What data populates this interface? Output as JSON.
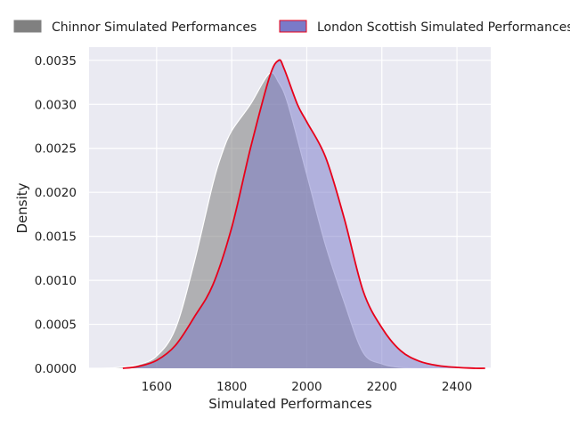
{
  "chart_data": {
    "type": "area",
    "xlabel": "Simulated Performances",
    "ylabel": "Density",
    "xlim": [
      1420,
      2490
    ],
    "ylim": [
      0,
      0.00365
    ],
    "xticks": [
      1600,
      1800,
      2000,
      2200,
      2400
    ],
    "yticks": [
      0.0,
      0.0005,
      0.001,
      0.0015,
      0.002,
      0.0025,
      0.003,
      0.0035
    ],
    "ytick_labels": [
      "0.0000",
      "0.0005",
      "0.0010",
      "0.0015",
      "0.0020",
      "0.0025",
      "0.0030",
      "0.0035"
    ],
    "grid": true,
    "legend_position": "top",
    "series": [
      {
        "name": "Chinnor Simulated Performances",
        "fill": "#808080",
        "fill_opacity": 0.55,
        "stroke": "#ffffff",
        "x": [
          1455,
          1500,
          1550,
          1600,
          1650,
          1700,
          1750,
          1775,
          1800,
          1850,
          1900,
          1925,
          1950,
          2000,
          2050,
          2100,
          2150,
          2200,
          2250,
          2300,
          2350
        ],
        "y": [
          0.0,
          1e-05,
          4e-05,
          0.00014,
          0.00045,
          0.0012,
          0.0021,
          0.00245,
          0.0027,
          0.003,
          0.00335,
          0.00325,
          0.003,
          0.0022,
          0.0014,
          0.00075,
          0.00018,
          5e-05,
          1e-05,
          0.0,
          0.0
        ]
      },
      {
        "name": "London Scottish Simulated Performances",
        "fill": "#7777c8",
        "fill_opacity": 0.5,
        "stroke": "#e8001a",
        "x": [
          1510,
          1550,
          1600,
          1650,
          1700,
          1750,
          1800,
          1850,
          1900,
          1925,
          1940,
          1975,
          2000,
          2050,
          2100,
          2150,
          2200,
          2250,
          2300,
          2350,
          2400,
          2450,
          2475
        ],
        "y": [
          0.0,
          2e-05,
          9e-05,
          0.00026,
          0.00058,
          0.00095,
          0.0016,
          0.0025,
          0.0033,
          0.0035,
          0.0034,
          0.003,
          0.0028,
          0.0024,
          0.0017,
          0.00088,
          0.00046,
          0.0002,
          8e-05,
          3e-05,
          1e-05,
          0.0,
          0.0
        ]
      }
    ]
  }
}
